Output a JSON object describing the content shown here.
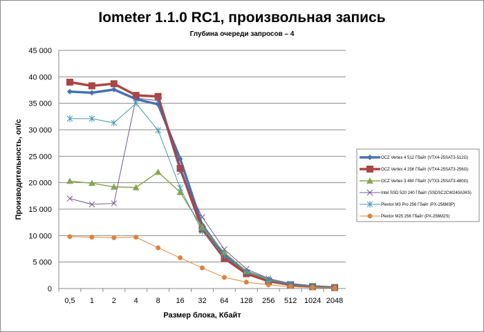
{
  "chart_data": {
    "type": "line",
    "title": "Iometer 1.1.0 RC1, произвольная запись",
    "subtitle": "Глубина очереди запросов – 4",
    "xlabel": "Размер блока, Кбайт",
    "ylabel": "Производительность, оп/с",
    "categories": [
      "0,5",
      "1",
      "2",
      "4",
      "8",
      "16",
      "32",
      "64",
      "128",
      "256",
      "512",
      "1024",
      "2048"
    ],
    "ylim": [
      0,
      45000
    ],
    "yticks": [
      0,
      5000,
      10000,
      15000,
      20000,
      25000,
      30000,
      35000,
      40000,
      45000
    ],
    "ytick_labels": [
      "0",
      "5 000",
      "10 000",
      "15 000",
      "20 000",
      "25 000",
      "30 000",
      "35 000",
      "40 000",
      "45 000"
    ],
    "grid": true,
    "legend_position": "right",
    "series": [
      {
        "name": "OCZ Vertex  4 512 Гбайт (VTX4-25SAT3-512G)",
        "color": "#4572b6",
        "marker": "diamond",
        "values": [
          37200,
          37000,
          37600,
          35800,
          34800,
          24500,
          12000,
          6300,
          3200,
          1700,
          800,
          400,
          200
        ]
      },
      {
        "name": "OCZ Vertex  4 256 Гбайт (VTX4-25SAT3-256G)",
        "color": "#aa4643",
        "marker": "square",
        "values": [
          39000,
          38300,
          38700,
          36500,
          36300,
          22700,
          11200,
          5700,
          2800,
          1400,
          700,
          350,
          180
        ]
      },
      {
        "name": "OCZ Vertex  3 480 Гбайт (VTX3-25SAT3-480G)",
        "color": "#89a54e",
        "marker": "triangle",
        "values": [
          20300,
          19900,
          19200,
          19100,
          22000,
          18200,
          11500,
          6800,
          3300,
          1700,
          800,
          400,
          200
        ]
      },
      {
        "name": "Intel SSD 520 240 Гбайт (SSDSC2CW240A3K5)",
        "color": "#71588f",
        "marker": "x",
        "values": [
          17000,
          15900,
          16100,
          36000,
          35500,
          22000,
          13500,
          7400,
          3700,
          1900,
          900,
          450,
          220
        ]
      },
      {
        "name": "Plextor M3 Pro 256 Гбайт (PX-256M3P)",
        "color": "#4198af",
        "marker": "star",
        "values": [
          32100,
          32100,
          31300,
          35000,
          29900,
          19000,
          10800,
          6200,
          3100,
          1600,
          800,
          400,
          200
        ]
      },
      {
        "name": "Plextor M25 256 Гбайт (PX-256M2S)",
        "color": "#db843d",
        "marker": "circle",
        "values": [
          9800,
          9700,
          9600,
          9700,
          7700,
          5800,
          3900,
          2100,
          1200,
          700,
          350,
          180,
          90
        ]
      }
    ]
  }
}
